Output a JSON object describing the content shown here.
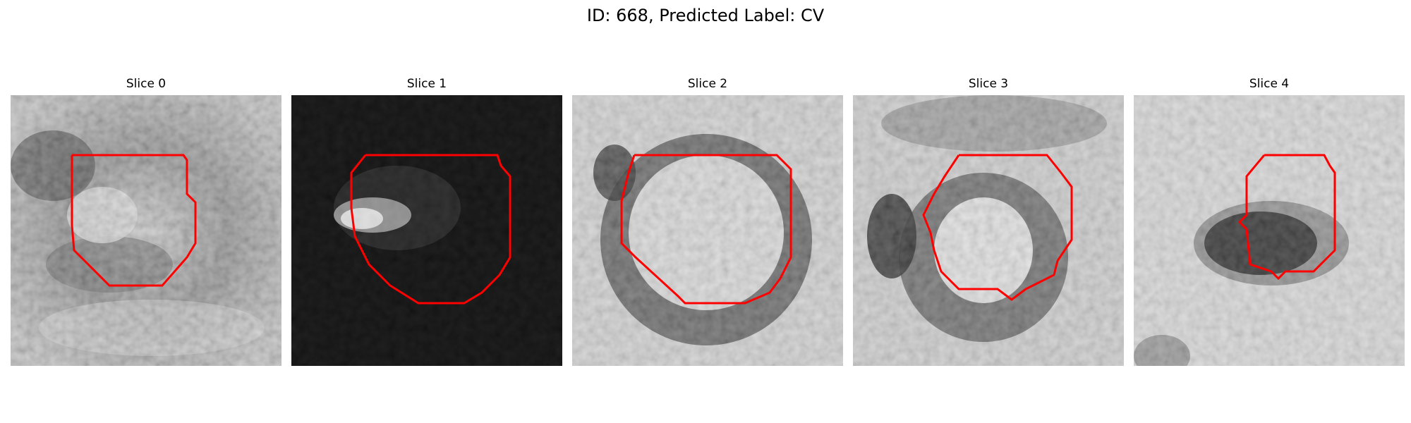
{
  "figure": {
    "title": "ID: 668, Predicted Label: CV"
  },
  "panels": [
    {
      "label": "Slice 0"
    },
    {
      "label": "Slice 1"
    },
    {
      "label": "Slice 2"
    },
    {
      "label": "Slice 3"
    },
    {
      "label": "Slice 4"
    }
  ],
  "colors": {
    "contour": "#ff0000",
    "background": "#ffffff"
  }
}
